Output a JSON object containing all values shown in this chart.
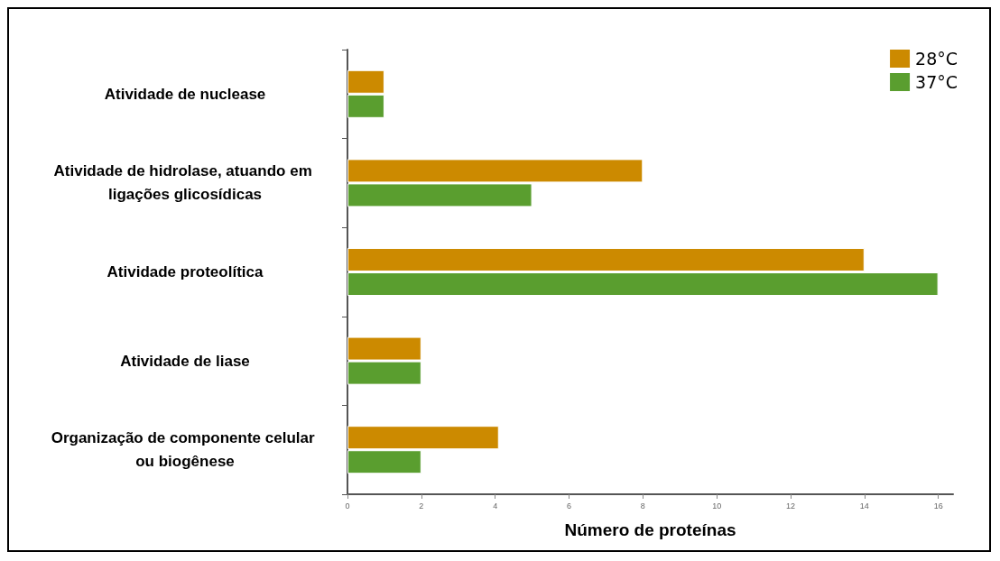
{
  "chart_data": {
    "type": "bar",
    "orientation": "horizontal",
    "xlabel": "Número de proteínas",
    "categories": [
      "Atividade de nuclease",
      "Atividade de hidrolase, atuando em ligações glicosídicas",
      "Atividade proteolítica",
      "Atividade de liase",
      "Organização de componente celular ou biogênese"
    ],
    "series": [
      {
        "name": "28°C",
        "color": "#cc8a00",
        "values": [
          1,
          8,
          14,
          2,
          4.1
        ]
      },
      {
        "name": "37°C",
        "color": "#5a9e2f",
        "values": [
          1,
          5,
          16,
          2,
          2
        ]
      }
    ],
    "xlim": [
      0,
      16.4
    ],
    "xticks": [
      0,
      2,
      4,
      6,
      8,
      10,
      12,
      14,
      16
    ],
    "grid": false,
    "legend": "top right"
  }
}
